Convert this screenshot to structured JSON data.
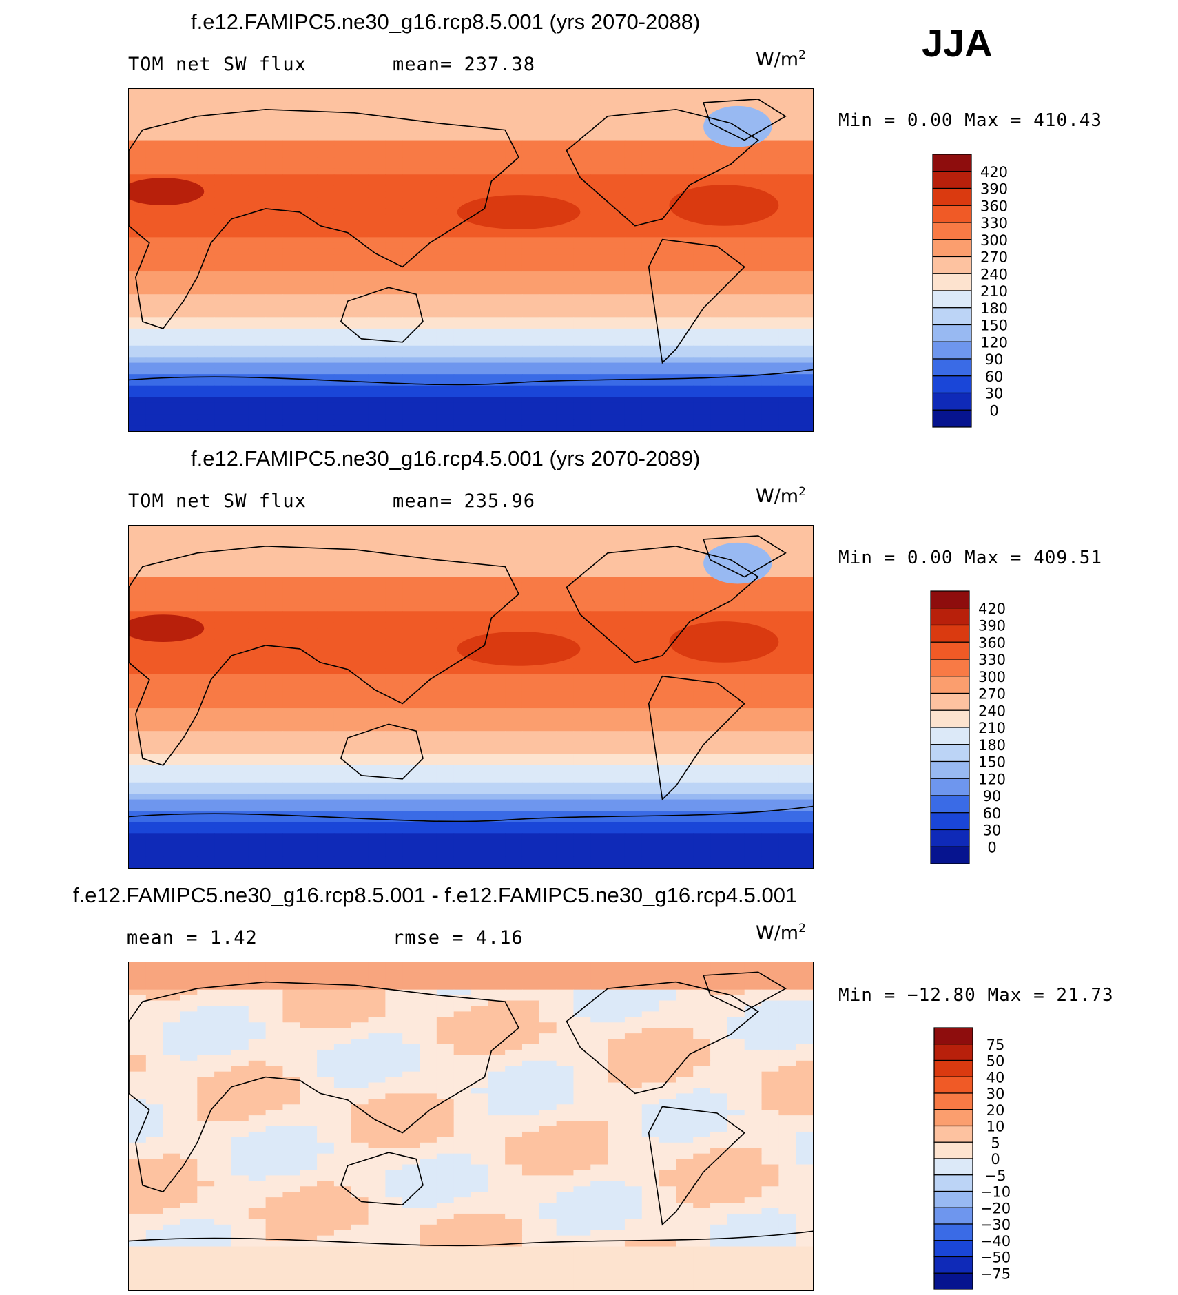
{
  "season": "JJA",
  "panels": [
    {
      "id": "rcp85",
      "title": "f.e12.FAMIPC5.ne30_g16.rcp8.5.001 (yrs 2070-2088)",
      "left_label": "TOM net SW flux",
      "center_label": "mean= 237.38",
      "units": "W/m",
      "units_exp": "2",
      "stats": "Min =    0.00 Max = 410.43",
      "colorbar_ticks": [
        "420",
        "390",
        "360",
        "330",
        "300",
        "270",
        "240",
        "210",
        "180",
        "150",
        "120",
        "90",
        "60",
        "30",
        "0"
      ],
      "colorbar_colors": [
        "#8e0d0d",
        "#b8200b",
        "#da3a10",
        "#f05a26",
        "#f87a45",
        "#fb9e6e",
        "#fdc2a0",
        "#fde3cf",
        "#dce9f8",
        "#bcd4f6",
        "#98b9f2",
        "#6e96ee",
        "#3a6be6",
        "#1a46d8",
        "#0f2ab8",
        "#06148f"
      ],
      "chart_data": {
        "type": "heatmap",
        "title": "f.e12.FAMIPC5.ne30_g16.rcp8.5.001 (yrs 2070-2088)",
        "variable": "TOM net SW flux",
        "season": "JJA",
        "units": "W/m^2",
        "mean": 237.38,
        "min": 0.0,
        "max": 410.43,
        "contour_levels": [
          0,
          30,
          60,
          90,
          120,
          150,
          180,
          210,
          240,
          270,
          300,
          330,
          360,
          390,
          420
        ]
      }
    },
    {
      "id": "rcp45",
      "title": "f.e12.FAMIPC5.ne30_g16.rcp4.5.001 (yrs 2070-2089)",
      "left_label": "TOM net SW flux",
      "center_label": "mean= 235.96",
      "units": "W/m",
      "units_exp": "2",
      "stats": "Min =    0.00 Max = 409.51",
      "colorbar_ticks": [
        "420",
        "390",
        "360",
        "330",
        "300",
        "270",
        "240",
        "210",
        "180",
        "150",
        "120",
        "90",
        "60",
        "30",
        "0"
      ],
      "colorbar_colors": [
        "#8e0d0d",
        "#b8200b",
        "#da3a10",
        "#f05a26",
        "#f87a45",
        "#fb9e6e",
        "#fdc2a0",
        "#fde3cf",
        "#dce9f8",
        "#bcd4f6",
        "#98b9f2",
        "#6e96ee",
        "#3a6be6",
        "#1a46d8",
        "#0f2ab8",
        "#06148f"
      ],
      "chart_data": {
        "type": "heatmap",
        "title": "f.e12.FAMIPC5.ne30_g16.rcp4.5.001 (yrs 2070-2089)",
        "variable": "TOM net SW flux",
        "season": "JJA",
        "units": "W/m^2",
        "mean": 235.96,
        "min": 0.0,
        "max": 409.51,
        "contour_levels": [
          0,
          30,
          60,
          90,
          120,
          150,
          180,
          210,
          240,
          270,
          300,
          330,
          360,
          390,
          420
        ]
      }
    },
    {
      "id": "diff",
      "title": "f.e12.FAMIPC5.ne30_g16.rcp8.5.001 - f.e12.FAMIPC5.ne30_g16.rcp4.5.001",
      "left_label": "mean =    1.42",
      "center_label": "rmse =    4.16",
      "units": "W/m",
      "units_exp": "2",
      "stats": "Min = −12.80 Max =  21.73",
      "colorbar_ticks": [
        "75",
        "50",
        "40",
        "30",
        "20",
        "10",
        "5",
        "0",
        "−5",
        "−10",
        "−20",
        "−30",
        "−40",
        "−50",
        "−75"
      ],
      "colorbar_colors": [
        "#8e0d0d",
        "#b8200b",
        "#da3a10",
        "#f05a26",
        "#f87a45",
        "#fb9e6e",
        "#fdc2a0",
        "#fde3cf",
        "#dce9f8",
        "#bcd4f6",
        "#98b9f2",
        "#6e96ee",
        "#3a6be6",
        "#1a46d8",
        "#0f2ab8",
        "#06148f"
      ],
      "chart_data": {
        "type": "heatmap",
        "title": "f.e12.FAMIPC5.ne30_g16.rcp8.5.001 - f.e12.FAMIPC5.ne30_g16.rcp4.5.001",
        "season": "JJA",
        "units": "W/m^2",
        "mean": 1.42,
        "rmse": 4.16,
        "min": -12.8,
        "max": 21.73,
        "contour_levels": [
          -75,
          -50,
          -40,
          -30,
          -20,
          -10,
          -5,
          0,
          5,
          10,
          20,
          30,
          40,
          50,
          75
        ]
      }
    }
  ]
}
